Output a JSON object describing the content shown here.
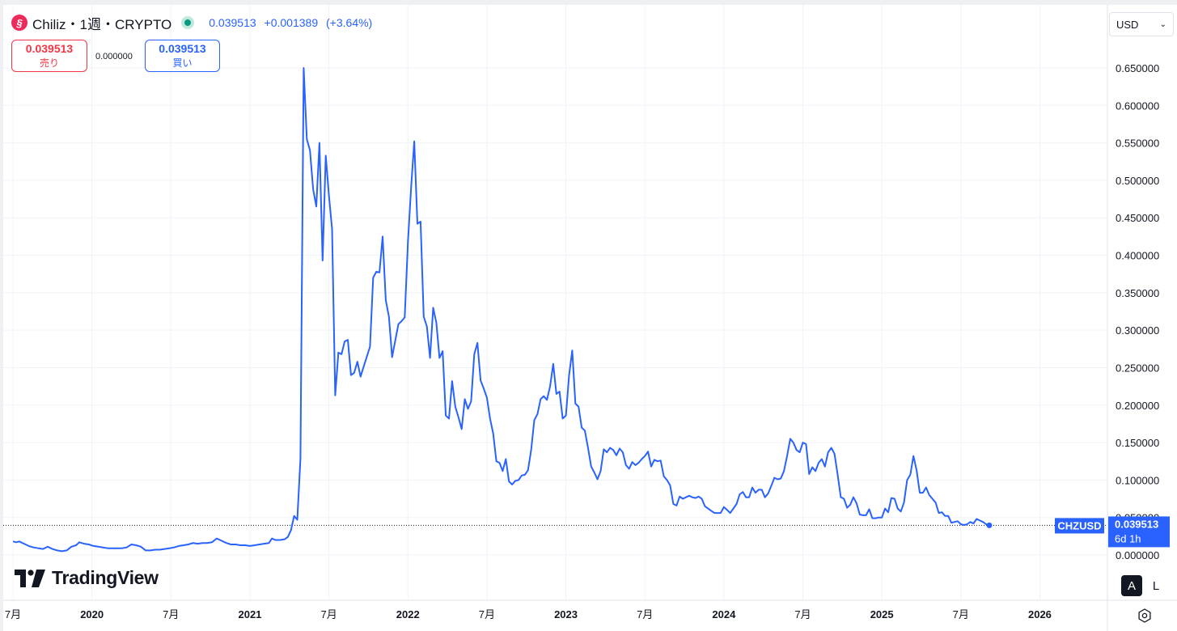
{
  "header": {
    "title": "Chiliz・1週・CRYPTO",
    "logo_icon": "chiliz-logo-icon",
    "price": "0.039513",
    "change": "+0.001389",
    "change_pct": "(+3.64%)"
  },
  "trade": {
    "sell_price": "0.039513",
    "sell_label": "売り",
    "spread": "0.000000",
    "buy_price": "0.039513",
    "buy_label": "買い"
  },
  "currency": {
    "selected": "USD"
  },
  "brand": {
    "name": "TradingView"
  },
  "scale_buttons": {
    "auto": "A",
    "log": "L"
  },
  "price_tag": {
    "symbol": "CHZUSD",
    "price": "0.039513",
    "countdown": "6d 1h"
  },
  "colors": {
    "line": "#2962ff",
    "up": "#089981",
    "sell": "#f23645",
    "buy": "#2962ff"
  },
  "chart_data": {
    "type": "line",
    "series": [
      {
        "name": "CHZUSD"
      }
    ],
    "x_unit": "year (decimal)",
    "y_unit": "USD",
    "ylim": [
      0,
      0.65
    ],
    "y_ticks": [
      "0.650000",
      "0.600000",
      "0.550000",
      "0.500000",
      "0.450000",
      "0.400000",
      "0.350000",
      "0.300000",
      "0.250000",
      "0.200000",
      "0.150000",
      "0.100000",
      "0.050000",
      "0.000000"
    ],
    "y_tick_values": [
      0.65,
      0.6,
      0.55,
      0.5,
      0.45,
      0.4,
      0.35,
      0.3,
      0.25,
      0.2,
      0.15,
      0.1,
      0.05,
      0
    ],
    "x_ticks": [
      {
        "label": "7月",
        "t": 2019.5,
        "year": false
      },
      {
        "label": "2020",
        "t": 2020.0,
        "year": true
      },
      {
        "label": "7月",
        "t": 2020.5,
        "year": false
      },
      {
        "label": "2021",
        "t": 2021.0,
        "year": true
      },
      {
        "label": "7月",
        "t": 2021.5,
        "year": false
      },
      {
        "label": "2022",
        "t": 2022.0,
        "year": true
      },
      {
        "label": "7月",
        "t": 2022.5,
        "year": false
      },
      {
        "label": "2023",
        "t": 2023.0,
        "year": true
      },
      {
        "label": "7月",
        "t": 2023.5,
        "year": false
      },
      {
        "label": "2024",
        "t": 2024.0,
        "year": true
      },
      {
        "label": "7月",
        "t": 2024.5,
        "year": false
      },
      {
        "label": "2025",
        "t": 2025.0,
        "year": true
      },
      {
        "label": "7月",
        "t": 2025.5,
        "year": false
      },
      {
        "label": "2026",
        "t": 2026.0,
        "year": true
      }
    ],
    "last_value": 0.039513,
    "points": [
      [
        2019.5,
        0.018
      ],
      [
        2019.52,
        0.017
      ],
      [
        2019.54,
        0.018
      ],
      [
        2019.57,
        0.015
      ],
      [
        2019.6,
        0.012
      ],
      [
        2019.63,
        0.01
      ],
      [
        2019.66,
        0.009
      ],
      [
        2019.69,
        0.008
      ],
      [
        2019.72,
        0.011
      ],
      [
        2019.75,
        0.008
      ],
      [
        2019.78,
        0.006
      ],
      [
        2019.81,
        0.005
      ],
      [
        2019.84,
        0.006
      ],
      [
        2019.87,
        0.011
      ],
      [
        2019.9,
        0.013
      ],
      [
        2019.92,
        0.017
      ],
      [
        2019.95,
        0.015
      ],
      [
        2019.98,
        0.014
      ],
      [
        2020.01,
        0.012
      ],
      [
        2020.04,
        0.011
      ],
      [
        2020.07,
        0.01
      ],
      [
        2020.1,
        0.009
      ],
      [
        2020.13,
        0.009
      ],
      [
        2020.16,
        0.009
      ],
      [
        2020.19,
        0.009
      ],
      [
        2020.22,
        0.01
      ],
      [
        2020.25,
        0.014
      ],
      [
        2020.28,
        0.013
      ],
      [
        2020.31,
        0.011
      ],
      [
        2020.34,
        0.006
      ],
      [
        2020.37,
        0.006
      ],
      [
        2020.4,
        0.007
      ],
      [
        2020.43,
        0.007
      ],
      [
        2020.46,
        0.008
      ],
      [
        2020.49,
        0.009
      ],
      [
        2020.52,
        0.01
      ],
      [
        2020.55,
        0.012
      ],
      [
        2020.58,
        0.013
      ],
      [
        2020.61,
        0.014
      ],
      [
        2020.64,
        0.016
      ],
      [
        2020.67,
        0.015
      ],
      [
        2020.7,
        0.016
      ],
      [
        2020.73,
        0.016
      ],
      [
        2020.76,
        0.017
      ],
      [
        2020.79,
        0.022
      ],
      [
        2020.82,
        0.019
      ],
      [
        2020.85,
        0.016
      ],
      [
        2020.88,
        0.014
      ],
      [
        2020.91,
        0.014
      ],
      [
        2020.94,
        0.013
      ],
      [
        2020.97,
        0.013
      ],
      [
        2021.0,
        0.012
      ],
      [
        2021.03,
        0.013
      ],
      [
        2021.06,
        0.014
      ],
      [
        2021.09,
        0.015
      ],
      [
        2021.12,
        0.016
      ],
      [
        2021.14,
        0.022
      ],
      [
        2021.16,
        0.02
      ],
      [
        2021.19,
        0.02
      ],
      [
        2021.22,
        0.021
      ],
      [
        2021.24,
        0.024
      ],
      [
        2021.26,
        0.033
      ],
      [
        2021.28,
        0.052
      ],
      [
        2021.3,
        0.047
      ],
      [
        2021.32,
        0.128
      ],
      [
        2021.34,
        0.65
      ],
      [
        2021.36,
        0.555
      ],
      [
        2021.38,
        0.54
      ],
      [
        2021.4,
        0.488
      ],
      [
        2021.42,
        0.465
      ],
      [
        2021.44,
        0.55
      ],
      [
        2021.46,
        0.393
      ],
      [
        2021.48,
        0.533
      ],
      [
        2021.5,
        0.48
      ],
      [
        2021.52,
        0.435
      ],
      [
        2021.54,
        0.213
      ],
      [
        2021.56,
        0.27
      ],
      [
        2021.58,
        0.268
      ],
      [
        2021.6,
        0.285
      ],
      [
        2021.62,
        0.287
      ],
      [
        2021.64,
        0.24
      ],
      [
        2021.66,
        0.243
      ],
      [
        2021.68,
        0.258
      ],
      [
        2021.7,
        0.238
      ],
      [
        2021.73,
        0.258
      ],
      [
        2021.76,
        0.278
      ],
      [
        2021.78,
        0.37
      ],
      [
        2021.8,
        0.378
      ],
      [
        2021.82,
        0.377
      ],
      [
        2021.84,
        0.425
      ],
      [
        2021.86,
        0.34
      ],
      [
        2021.88,
        0.318
      ],
      [
        2021.9,
        0.264
      ],
      [
        2021.92,
        0.286
      ],
      [
        2021.94,
        0.308
      ],
      [
        2021.96,
        0.312
      ],
      [
        2021.98,
        0.317
      ],
      [
        2022.0,
        0.418
      ],
      [
        2022.02,
        0.49
      ],
      [
        2022.04,
        0.552
      ],
      [
        2022.06,
        0.442
      ],
      [
        2022.08,
        0.445
      ],
      [
        2022.1,
        0.318
      ],
      [
        2022.12,
        0.305
      ],
      [
        2022.14,
        0.263
      ],
      [
        2022.16,
        0.33
      ],
      [
        2022.18,
        0.31
      ],
      [
        2022.2,
        0.263
      ],
      [
        2022.22,
        0.272
      ],
      [
        2022.24,
        0.186
      ],
      [
        2022.26,
        0.182
      ],
      [
        2022.28,
        0.232
      ],
      [
        2022.3,
        0.198
      ],
      [
        2022.32,
        0.184
      ],
      [
        2022.34,
        0.168
      ],
      [
        2022.36,
        0.208
      ],
      [
        2022.38,
        0.195
      ],
      [
        2022.4,
        0.205
      ],
      [
        2022.42,
        0.268
      ],
      [
        2022.44,
        0.283
      ],
      [
        2022.46,
        0.233
      ],
      [
        2022.48,
        0.222
      ],
      [
        2022.5,
        0.21
      ],
      [
        2022.52,
        0.182
      ],
      [
        2022.54,
        0.162
      ],
      [
        2022.56,
        0.125
      ],
      [
        2022.58,
        0.123
      ],
      [
        2022.6,
        0.112
      ],
      [
        2022.62,
        0.128
      ],
      [
        2022.64,
        0.098
      ],
      [
        2022.66,
        0.094
      ],
      [
        2022.68,
        0.099
      ],
      [
        2022.7,
        0.1
      ],
      [
        2022.72,
        0.106
      ],
      [
        2022.74,
        0.107
      ],
      [
        2022.76,
        0.113
      ],
      [
        2022.78,
        0.14
      ],
      [
        2022.8,
        0.18
      ],
      [
        2022.82,
        0.188
      ],
      [
        2022.84,
        0.208
      ],
      [
        2022.86,
        0.212
      ],
      [
        2022.88,
        0.207
      ],
      [
        2022.9,
        0.225
      ],
      [
        2022.92,
        0.255
      ],
      [
        2022.94,
        0.215
      ],
      [
        2022.96,
        0.218
      ],
      [
        2022.98,
        0.182
      ],
      [
        2023.0,
        0.186
      ],
      [
        2023.02,
        0.24
      ],
      [
        2023.04,
        0.273
      ],
      [
        2023.06,
        0.202
      ],
      [
        2023.08,
        0.198
      ],
      [
        2023.1,
        0.17
      ],
      [
        2023.12,
        0.166
      ],
      [
        2023.14,
        0.143
      ],
      [
        2023.16,
        0.118
      ],
      [
        2023.18,
        0.11
      ],
      [
        2023.2,
        0.101
      ],
      [
        2023.22,
        0.112
      ],
      [
        2023.24,
        0.141
      ],
      [
        2023.26,
        0.137
      ],
      [
        2023.28,
        0.143
      ],
      [
        2023.3,
        0.14
      ],
      [
        2023.32,
        0.133
      ],
      [
        2023.34,
        0.142
      ],
      [
        2023.36,
        0.137
      ],
      [
        2023.38,
        0.12
      ],
      [
        2023.4,
        0.115
      ],
      [
        2023.42,
        0.124
      ],
      [
        2023.44,
        0.12
      ],
      [
        2023.46,
        0.123
      ],
      [
        2023.48,
        0.128
      ],
      [
        2023.5,
        0.132
      ],
      [
        2023.52,
        0.138
      ],
      [
        2023.54,
        0.118
      ],
      [
        2023.56,
        0.127
      ],
      [
        2023.58,
        0.125
      ],
      [
        2023.6,
        0.126
      ],
      [
        2023.62,
        0.105
      ],
      [
        2023.64,
        0.1
      ],
      [
        2023.66,
        0.093
      ],
      [
        2023.68,
        0.068
      ],
      [
        2023.7,
        0.066
      ],
      [
        2023.72,
        0.078
      ],
      [
        2023.74,
        0.075
      ],
      [
        2023.76,
        0.077
      ],
      [
        2023.78,
        0.079
      ],
      [
        2023.8,
        0.077
      ],
      [
        2023.82,
        0.076
      ],
      [
        2023.84,
        0.078
      ],
      [
        2023.86,
        0.075
      ],
      [
        2023.88,
        0.065
      ],
      [
        2023.9,
        0.062
      ],
      [
        2023.92,
        0.059
      ],
      [
        2023.94,
        0.056
      ],
      [
        2023.96,
        0.056
      ],
      [
        2023.98,
        0.056
      ],
      [
        2024.0,
        0.064
      ],
      [
        2024.02,
        0.06
      ],
      [
        2024.04,
        0.056
      ],
      [
        2024.06,
        0.062
      ],
      [
        2024.08,
        0.068
      ],
      [
        2024.1,
        0.081
      ],
      [
        2024.12,
        0.084
      ],
      [
        2024.14,
        0.077
      ],
      [
        2024.16,
        0.077
      ],
      [
        2024.18,
        0.09
      ],
      [
        2024.2,
        0.083
      ],
      [
        2024.22,
        0.087
      ],
      [
        2024.24,
        0.087
      ],
      [
        2024.26,
        0.077
      ],
      [
        2024.28,
        0.082
      ],
      [
        2024.3,
        0.092
      ],
      [
        2024.32,
        0.103
      ],
      [
        2024.34,
        0.101
      ],
      [
        2024.36,
        0.102
      ],
      [
        2024.38,
        0.112
      ],
      [
        2024.4,
        0.132
      ],
      [
        2024.42,
        0.155
      ],
      [
        2024.44,
        0.15
      ],
      [
        2024.46,
        0.14
      ],
      [
        2024.48,
        0.137
      ],
      [
        2024.5,
        0.15
      ],
      [
        2024.52,
        0.148
      ],
      [
        2024.54,
        0.108
      ],
      [
        2024.56,
        0.117
      ],
      [
        2024.58,
        0.112
      ],
      [
        2024.6,
        0.123
      ],
      [
        2024.62,
        0.128
      ],
      [
        2024.64,
        0.118
      ],
      [
        2024.66,
        0.137
      ],
      [
        2024.68,
        0.143
      ],
      [
        2024.7,
        0.135
      ],
      [
        2024.72,
        0.107
      ],
      [
        2024.74,
        0.077
      ],
      [
        2024.76,
        0.075
      ],
      [
        2024.78,
        0.063
      ],
      [
        2024.8,
        0.067
      ],
      [
        2024.82,
        0.077
      ],
      [
        2024.84,
        0.069
      ],
      [
        2024.86,
        0.054
      ],
      [
        2024.88,
        0.053
      ],
      [
        2024.9,
        0.053
      ],
      [
        2024.92,
        0.061
      ],
      [
        2024.94,
        0.049
      ],
      [
        2024.96,
        0.049
      ],
      [
        2024.98,
        0.05
      ],
      [
        2025.0,
        0.05
      ],
      [
        2025.02,
        0.062
      ],
      [
        2025.04,
        0.057
      ],
      [
        2025.06,
        0.076
      ],
      [
        2025.08,
        0.075
      ],
      [
        2025.1,
        0.062
      ],
      [
        2025.12,
        0.058
      ],
      [
        2025.14,
        0.07
      ],
      [
        2025.16,
        0.1
      ],
      [
        2025.18,
        0.107
      ],
      [
        2025.2,
        0.132
      ],
      [
        2025.22,
        0.113
      ],
      [
        2025.24,
        0.083
      ],
      [
        2025.26,
        0.083
      ],
      [
        2025.28,
        0.09
      ],
      [
        2025.3,
        0.08
      ],
      [
        2025.32,
        0.075
      ],
      [
        2025.34,
        0.07
      ],
      [
        2025.36,
        0.056
      ],
      [
        2025.38,
        0.057
      ],
      [
        2025.4,
        0.052
      ],
      [
        2025.42,
        0.052
      ],
      [
        2025.44,
        0.043
      ],
      [
        2025.46,
        0.044
      ],
      [
        2025.48,
        0.045
      ],
      [
        2025.5,
        0.041
      ],
      [
        2025.52,
        0.04
      ],
      [
        2025.54,
        0.041
      ],
      [
        2025.56,
        0.044
      ],
      [
        2025.58,
        0.042
      ],
      [
        2025.6,
        0.048
      ],
      [
        2025.62,
        0.046
      ],
      [
        2025.64,
        0.044
      ],
      [
        2025.66,
        0.041
      ],
      [
        2025.68,
        0.039513
      ]
    ]
  }
}
